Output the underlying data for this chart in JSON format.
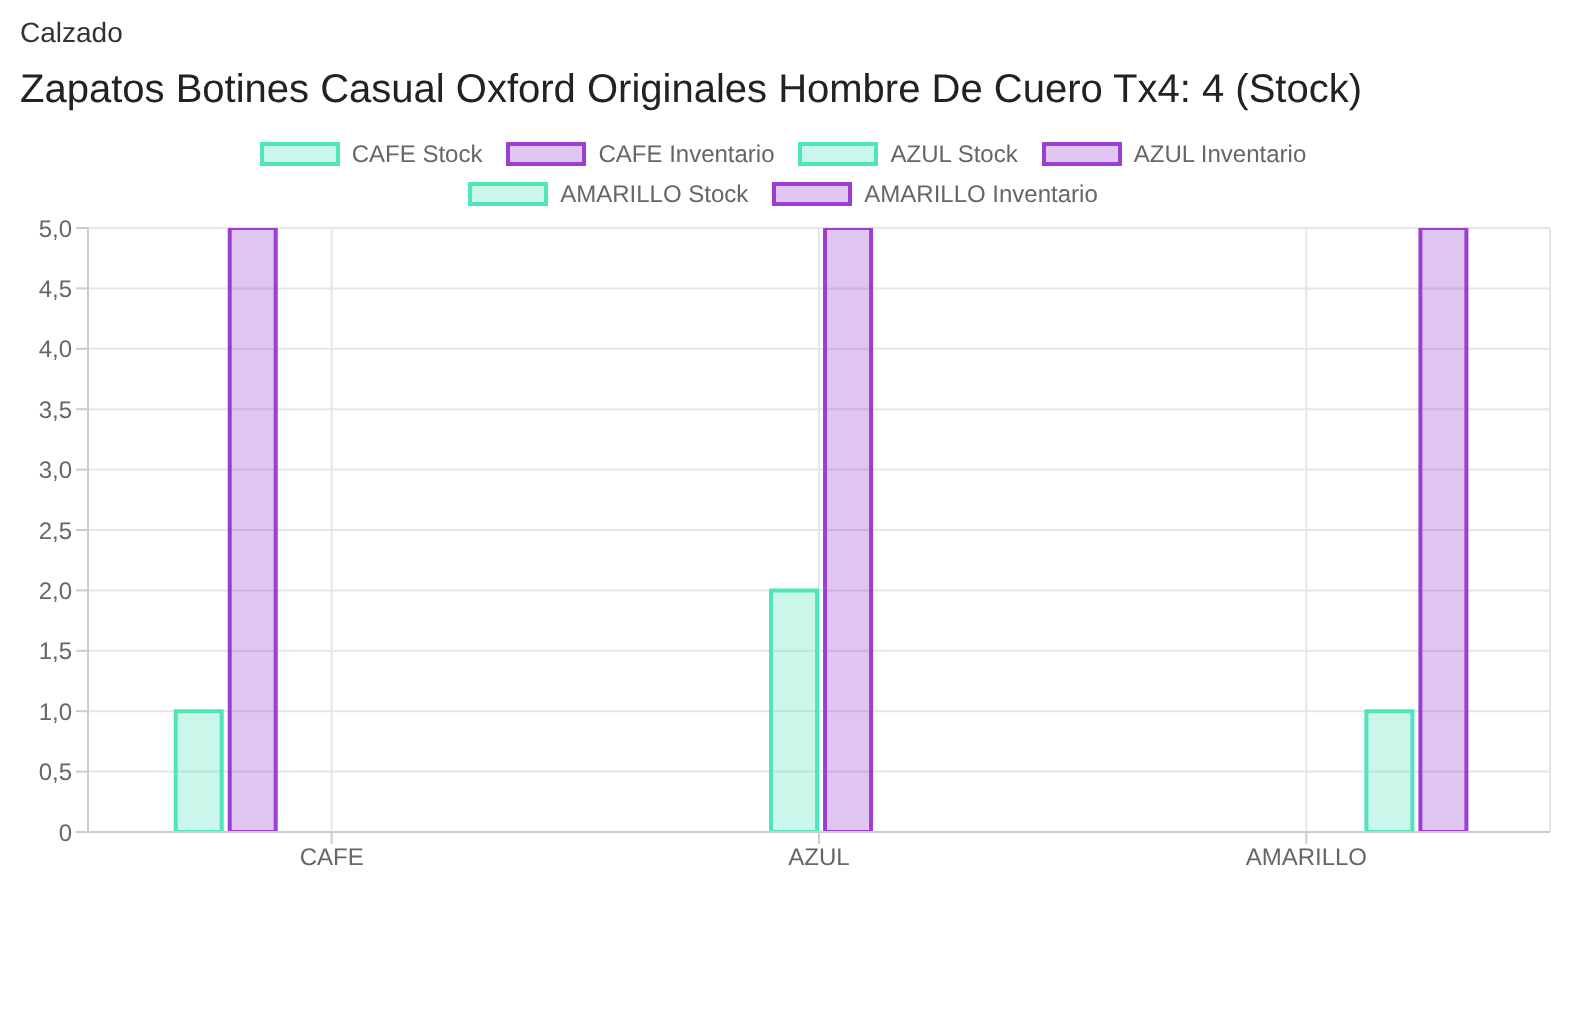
{
  "chart_data": {
    "type": "bar",
    "title": "Zapatos Botines Casual Oxford Originales Hombre De Cuero Tx4: 4 (Stock)",
    "annotations": [
      "Calzado"
    ],
    "categories": [
      "CAFE",
      "AZUL",
      "AMARILLO"
    ],
    "series": [
      {
        "name": "CAFE Stock",
        "color": "#4ee6b8",
        "values": [
          1,
          null,
          null
        ]
      },
      {
        "name": "CAFE Inventario",
        "color": "#9b3fd0",
        "values": [
          5,
          null,
          null
        ]
      },
      {
        "name": "AZUL Stock",
        "color": "#4ee6b8",
        "values": [
          null,
          2,
          null
        ]
      },
      {
        "name": "AZUL Inventario",
        "color": "#9b3fd0",
        "values": [
          null,
          5,
          null
        ]
      },
      {
        "name": "AMARILLO Stock",
        "color": "#4ee6b8",
        "values": [
          null,
          null,
          1
        ]
      },
      {
        "name": "AMARILLO Inventario",
        "color": "#9b3fd0",
        "values": [
          null,
          null,
          5
        ]
      }
    ],
    "ylim": [
      0,
      5
    ],
    "yticks": [
      0,
      {
        "value": 0.5,
        "label": "0,5"
      },
      {
        "value": 1,
        "label": "1,0"
      },
      {
        "value": 1.5,
        "label": "1,5"
      },
      {
        "value": 2,
        "label": "2,0"
      },
      {
        "value": 2.5,
        "label": "2,5"
      },
      {
        "value": 3,
        "label": "3,0"
      },
      {
        "value": 3.5,
        "label": "3,5"
      },
      {
        "value": 4,
        "label": "4,0"
      },
      {
        "value": 4.5,
        "label": "4,5"
      },
      {
        "value": 5,
        "label": "5,0"
      }
    ],
    "grid": true,
    "legend": "top"
  }
}
